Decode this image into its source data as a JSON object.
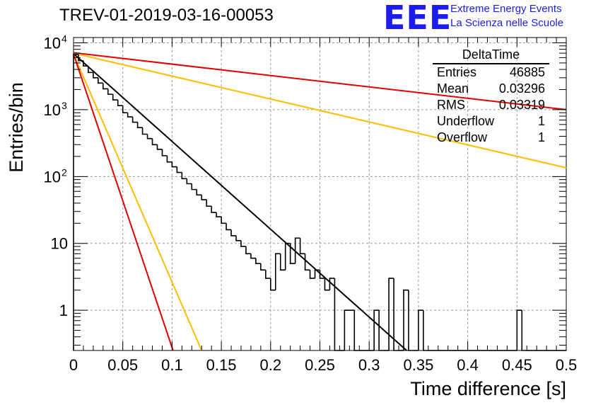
{
  "header": {
    "title": "TREV-01-2019-03-16-00053",
    "logo_text": "EEE",
    "logo_line1": "Extreme Energy Events",
    "logo_line2": "La Scienza nelle Scuole",
    "logo_color": "#1c1cf0"
  },
  "stats_box": {
    "name": "DeltaTime",
    "rows": [
      {
        "label": "Entries",
        "value": "46885"
      },
      {
        "label": "Mean",
        "value": "0.03296"
      },
      {
        "label": "RMS",
        "value": "0.03319"
      },
      {
        "label": "Underflow",
        "value": "1"
      },
      {
        "label": "Overflow",
        "value": "1"
      }
    ]
  },
  "chart_data": {
    "type": "histogram",
    "xlabel": "Time difference [s]",
    "ylabel": "Entries/bin",
    "xlim": [
      0,
      0.5
    ],
    "ylim": [
      0.25,
      12000
    ],
    "yscale": "log",
    "grid": true,
    "x_ticks": [
      "0",
      "0.05",
      "0.1",
      "0.15",
      "0.2",
      "0.25",
      "0.3",
      "0.35",
      "0.4",
      "0.45",
      "0.5"
    ],
    "y_ticks": [
      {
        "label": "1",
        "value": 1
      },
      {
        "label": "10",
        "value": 10
      },
      {
        "label": "10",
        "sup": "2",
        "value": 100
      },
      {
        "label": "10",
        "sup": "3",
        "value": 1000
      },
      {
        "label": "10",
        "sup": "4",
        "value": 10000
      }
    ],
    "bin_width": 0.005,
    "bin_starts": [
      0.0,
      0.005,
      0.01,
      0.015,
      0.02,
      0.025,
      0.03,
      0.035,
      0.04,
      0.045,
      0.05,
      0.055,
      0.06,
      0.065,
      0.07,
      0.075,
      0.08,
      0.085,
      0.09,
      0.095,
      0.1,
      0.105,
      0.11,
      0.115,
      0.12,
      0.125,
      0.13,
      0.135,
      0.14,
      0.145,
      0.15,
      0.155,
      0.16,
      0.165,
      0.17,
      0.175,
      0.18,
      0.185,
      0.19,
      0.195,
      0.2,
      0.205,
      0.21,
      0.215,
      0.22,
      0.225,
      0.23,
      0.235,
      0.24,
      0.245,
      0.25,
      0.255,
      0.26,
      0.265,
      0.27,
      0.275,
      0.28,
      0.285,
      0.29,
      0.295,
      0.3,
      0.305,
      0.31,
      0.315,
      0.32,
      0.325,
      0.33,
      0.335,
      0.34,
      0.345,
      0.35,
      0.355,
      0.36,
      0.365,
      0.37,
      0.375,
      0.38,
      0.385,
      0.39,
      0.395,
      0.4,
      0.405,
      0.41,
      0.415,
      0.42,
      0.425,
      0.43,
      0.435,
      0.44,
      0.445,
      0.45,
      0.455,
      0.46,
      0.465,
      0.47,
      0.475,
      0.48,
      0.485,
      0.49,
      0.495
    ],
    "counts": [
      6700,
      5400,
      4500,
      3600,
      3000,
      2500,
      2050,
      1700,
      1400,
      1150,
      900,
      780,
      650,
      540,
      430,
      370,
      300,
      255,
      205,
      165,
      140,
      115,
      93,
      78,
      64,
      53,
      45,
      36,
      29,
      25,
      20,
      16,
      13,
      11,
      9,
      7,
      6,
      5,
      4,
      3,
      2,
      7,
      4,
      10,
      5,
      12,
      7,
      4,
      3,
      4,
      3,
      2,
      3,
      0,
      0,
      1,
      1,
      0,
      0,
      0,
      0,
      1,
      0,
      0,
      3,
      0,
      0,
      2,
      0,
      0,
      1,
      0,
      0,
      0,
      0,
      0,
      0,
      0,
      0,
      0,
      0,
      0,
      0,
      0,
      0,
      0,
      0,
      0,
      0,
      0,
      1,
      0,
      0,
      0,
      0,
      0,
      0,
      0,
      0,
      0
    ],
    "fits": [
      {
        "color": "#000000",
        "x": [
          0,
          0.338
        ],
        "y": [
          6900,
          0.25
        ]
      },
      {
        "color": "#e00000",
        "x": [
          0,
          0.5
        ],
        "y": [
          7100,
          1000
        ]
      },
      {
        "color": "#ffbe00",
        "x": [
          0,
          0.5
        ],
        "y": [
          7000,
          135
        ]
      },
      {
        "color": "#ffbe00",
        "x": [
          0,
          0.13
        ],
        "y": [
          6800,
          0.25
        ]
      },
      {
        "color": "#e00000",
        "x": [
          0,
          0.101
        ],
        "y": [
          6800,
          0.25
        ]
      }
    ]
  }
}
